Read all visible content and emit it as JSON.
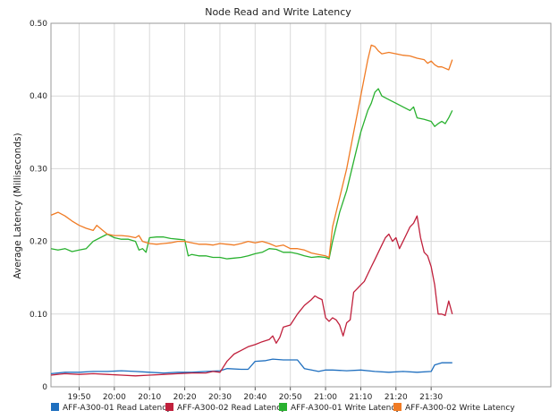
{
  "chart_data": {
    "type": "line",
    "title": "Node Read and Write Latency",
    "ylabel": "Average Latency (Milliseconds)",
    "xlabel": "",
    "xlim": [
      -8,
      134
    ],
    "ylim": [
      0,
      0.5
    ],
    "yticks": [
      0,
      0.1,
      0.2,
      0.3,
      0.4,
      0.5
    ],
    "ytick_labels": [
      "0",
      "0.10",
      "0.20",
      "0.30",
      "0.40",
      "0.50"
    ],
    "x_time_labels": [
      {
        "t": 0,
        "label": "19:50"
      },
      {
        "t": 10,
        "label": "20:00"
      },
      {
        "t": 20,
        "label": "20:10"
      },
      {
        "t": 30,
        "label": "20:20"
      },
      {
        "t": 40,
        "label": "20:30"
      },
      {
        "t": 50,
        "label": "20:40"
      },
      {
        "t": 60,
        "label": "20:50"
      },
      {
        "t": 70,
        "label": "21:00"
      },
      {
        "t": 80,
        "label": "21:10"
      },
      {
        "t": 90,
        "label": "21:20"
      },
      {
        "t": 100,
        "label": "21:30"
      }
    ],
    "grid": true,
    "legend_position": "bottom",
    "series": [
      {
        "name": "AFF-A300-01 Read Latency",
        "color": "#1f6fbf",
        "points": [
          [
            -8,
            0.018
          ],
          [
            -4,
            0.02
          ],
          [
            0,
            0.02
          ],
          [
            4,
            0.021
          ],
          [
            8,
            0.021
          ],
          [
            12,
            0.022
          ],
          [
            16,
            0.021
          ],
          [
            20,
            0.02
          ],
          [
            24,
            0.019
          ],
          [
            28,
            0.02
          ],
          [
            32,
            0.02
          ],
          [
            36,
            0.021
          ],
          [
            40,
            0.022
          ],
          [
            42,
            0.025
          ],
          [
            46,
            0.024
          ],
          [
            48,
            0.024
          ],
          [
            50,
            0.035
          ],
          [
            53,
            0.036
          ],
          [
            55,
            0.038
          ],
          [
            58,
            0.037
          ],
          [
            62,
            0.037
          ],
          [
            64,
            0.025
          ],
          [
            66,
            0.023
          ],
          [
            68,
            0.021
          ],
          [
            70,
            0.023
          ],
          [
            72,
            0.023
          ],
          [
            76,
            0.022
          ],
          [
            80,
            0.023
          ],
          [
            84,
            0.021
          ],
          [
            88,
            0.02
          ],
          [
            92,
            0.021
          ],
          [
            96,
            0.02
          ],
          [
            100,
            0.021
          ],
          [
            101,
            0.03
          ],
          [
            103,
            0.033
          ],
          [
            106,
            0.033
          ]
        ]
      },
      {
        "name": "AFF-A300-02 Read Latency",
        "color": "#c0203c",
        "points": [
          [
            -8,
            0.016
          ],
          [
            -4,
            0.018
          ],
          [
            0,
            0.017
          ],
          [
            4,
            0.018
          ],
          [
            8,
            0.017
          ],
          [
            12,
            0.016
          ],
          [
            16,
            0.015
          ],
          [
            20,
            0.016
          ],
          [
            24,
            0.017
          ],
          [
            28,
            0.018
          ],
          [
            32,
            0.019
          ],
          [
            36,
            0.019
          ],
          [
            38,
            0.021
          ],
          [
            40,
            0.02
          ],
          [
            42,
            0.035
          ],
          [
            44,
            0.045
          ],
          [
            46,
            0.05
          ],
          [
            48,
            0.055
          ],
          [
            50,
            0.058
          ],
          [
            52,
            0.062
          ],
          [
            54,
            0.065
          ],
          [
            55,
            0.07
          ],
          [
            56,
            0.06
          ],
          [
            57,
            0.068
          ],
          [
            58,
            0.082
          ],
          [
            60,
            0.085
          ],
          [
            62,
            0.1
          ],
          [
            64,
            0.112
          ],
          [
            66,
            0.12
          ],
          [
            67,
            0.125
          ],
          [
            68,
            0.122
          ],
          [
            69,
            0.12
          ],
          [
            70,
            0.095
          ],
          [
            71,
            0.09
          ],
          [
            72,
            0.095
          ],
          [
            73,
            0.092
          ],
          [
            74,
            0.085
          ],
          [
            75,
            0.07
          ],
          [
            76,
            0.088
          ],
          [
            77,
            0.092
          ],
          [
            78,
            0.13
          ],
          [
            79,
            0.135
          ],
          [
            80,
            0.14
          ],
          [
            81,
            0.145
          ],
          [
            82,
            0.155
          ],
          [
            83,
            0.165
          ],
          [
            84,
            0.175
          ],
          [
            85,
            0.185
          ],
          [
            86,
            0.195
          ],
          [
            87,
            0.205
          ],
          [
            88,
            0.21
          ],
          [
            89,
            0.2
          ],
          [
            90,
            0.205
          ],
          [
            91,
            0.19
          ],
          [
            92,
            0.2
          ],
          [
            93,
            0.21
          ],
          [
            94,
            0.22
          ],
          [
            95,
            0.225
          ],
          [
            96,
            0.235
          ],
          [
            97,
            0.205
          ],
          [
            98,
            0.185
          ],
          [
            99,
            0.18
          ],
          [
            100,
            0.165
          ],
          [
            101,
            0.14
          ],
          [
            102,
            0.1
          ],
          [
            103,
            0.1
          ],
          [
            104,
            0.098
          ],
          [
            105,
            0.118
          ],
          [
            106,
            0.1
          ]
        ]
      },
      {
        "name": "AFF-A300-01 Write Latency",
        "color": "#29b12f",
        "points": [
          [
            -8,
            0.19
          ],
          [
            -6,
            0.188
          ],
          [
            -4,
            0.19
          ],
          [
            -2,
            0.186
          ],
          [
            0,
            0.188
          ],
          [
            2,
            0.19
          ],
          [
            4,
            0.2
          ],
          [
            6,
            0.205
          ],
          [
            8,
            0.21
          ],
          [
            10,
            0.205
          ],
          [
            12,
            0.203
          ],
          [
            14,
            0.203
          ],
          [
            16,
            0.2
          ],
          [
            17,
            0.188
          ],
          [
            18,
            0.19
          ],
          [
            19,
            0.185
          ],
          [
            20,
            0.205
          ],
          [
            22,
            0.206
          ],
          [
            24,
            0.206
          ],
          [
            26,
            0.204
          ],
          [
            28,
            0.203
          ],
          [
            30,
            0.202
          ],
          [
            31,
            0.18
          ],
          [
            32,
            0.182
          ],
          [
            34,
            0.18
          ],
          [
            36,
            0.18
          ],
          [
            38,
            0.178
          ],
          [
            40,
            0.178
          ],
          [
            42,
            0.176
          ],
          [
            44,
            0.177
          ],
          [
            46,
            0.178
          ],
          [
            48,
            0.18
          ],
          [
            50,
            0.183
          ],
          [
            52,
            0.185
          ],
          [
            54,
            0.19
          ],
          [
            56,
            0.189
          ],
          [
            58,
            0.185
          ],
          [
            60,
            0.185
          ],
          [
            62,
            0.183
          ],
          [
            64,
            0.18
          ],
          [
            66,
            0.178
          ],
          [
            68,
            0.179
          ],
          [
            70,
            0.178
          ],
          [
            71,
            0.176
          ],
          [
            72,
            0.2
          ],
          [
            74,
            0.24
          ],
          [
            76,
            0.27
          ],
          [
            78,
            0.31
          ],
          [
            80,
            0.35
          ],
          [
            82,
            0.38
          ],
          [
            83,
            0.39
          ],
          [
            84,
            0.405
          ],
          [
            85,
            0.41
          ],
          [
            86,
            0.4
          ],
          [
            88,
            0.395
          ],
          [
            90,
            0.39
          ],
          [
            92,
            0.385
          ],
          [
            94,
            0.38
          ],
          [
            95,
            0.385
          ],
          [
            96,
            0.37
          ],
          [
            98,
            0.368
          ],
          [
            100,
            0.365
          ],
          [
            101,
            0.358
          ],
          [
            102,
            0.362
          ],
          [
            103,
            0.365
          ],
          [
            104,
            0.362
          ],
          [
            105,
            0.37
          ],
          [
            106,
            0.38
          ]
        ]
      },
      {
        "name": "AFF-A300-02 Write Latency",
        "color": "#f07b24",
        "points": [
          [
            -8,
            0.236
          ],
          [
            -6,
            0.24
          ],
          [
            -4,
            0.235
          ],
          [
            -2,
            0.228
          ],
          [
            0,
            0.222
          ],
          [
            2,
            0.218
          ],
          [
            4,
            0.215
          ],
          [
            5,
            0.222
          ],
          [
            6,
            0.218
          ],
          [
            8,
            0.21
          ],
          [
            10,
            0.208
          ],
          [
            12,
            0.208
          ],
          [
            14,
            0.207
          ],
          [
            16,
            0.205
          ],
          [
            17,
            0.208
          ],
          [
            18,
            0.2
          ],
          [
            20,
            0.197
          ],
          [
            22,
            0.196
          ],
          [
            24,
            0.197
          ],
          [
            26,
            0.198
          ],
          [
            28,
            0.2
          ],
          [
            30,
            0.2
          ],
          [
            32,
            0.198
          ],
          [
            34,
            0.196
          ],
          [
            36,
            0.196
          ],
          [
            38,
            0.195
          ],
          [
            40,
            0.197
          ],
          [
            42,
            0.196
          ],
          [
            44,
            0.195
          ],
          [
            46,
            0.197
          ],
          [
            48,
            0.2
          ],
          [
            50,
            0.198
          ],
          [
            52,
            0.2
          ],
          [
            54,
            0.197
          ],
          [
            56,
            0.193
          ],
          [
            58,
            0.195
          ],
          [
            60,
            0.19
          ],
          [
            62,
            0.19
          ],
          [
            64,
            0.188
          ],
          [
            66,
            0.184
          ],
          [
            68,
            0.182
          ],
          [
            70,
            0.18
          ],
          [
            71,
            0.178
          ],
          [
            72,
            0.22
          ],
          [
            74,
            0.26
          ],
          [
            76,
            0.3
          ],
          [
            78,
            0.35
          ],
          [
            80,
            0.4
          ],
          [
            82,
            0.45
          ],
          [
            83,
            0.47
          ],
          [
            84,
            0.468
          ],
          [
            85,
            0.462
          ],
          [
            86,
            0.458
          ],
          [
            88,
            0.46
          ],
          [
            90,
            0.458
          ],
          [
            92,
            0.456
          ],
          [
            94,
            0.455
          ],
          [
            96,
            0.452
          ],
          [
            98,
            0.45
          ],
          [
            99,
            0.445
          ],
          [
            100,
            0.448
          ],
          [
            101,
            0.443
          ],
          [
            102,
            0.44
          ],
          [
            103,
            0.44
          ],
          [
            104,
            0.438
          ],
          [
            105,
            0.436
          ],
          [
            106,
            0.45
          ]
        ]
      }
    ]
  }
}
